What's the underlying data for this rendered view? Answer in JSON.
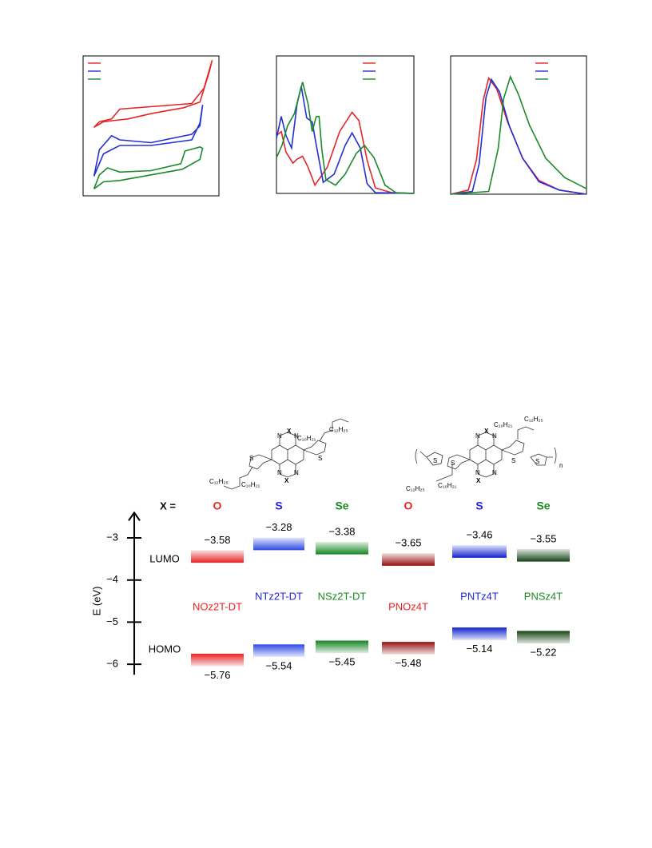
{
  "chart_data": [
    {
      "type": "line",
      "xlim": [
        0,
        10
      ],
      "ylim": [
        0,
        10
      ],
      "legend": "upper left",
      "series": [
        {
          "color": "#e3262a",
          "x": [
            0.8,
            1.2,
            2.1,
            2.7,
            8.0,
            8.9,
            9.5,
            9.3,
            8.6,
            7.4,
            5.1,
            3.3,
            2.4,
            1.5,
            0.8
          ],
          "values": [
            4.9,
            5.3,
            5.5,
            6.2,
            6.6,
            7.7,
            9.7,
            8.9,
            6.7,
            6.3,
            5.9,
            5.5,
            5.4,
            5.3,
            4.9
          ]
        },
        {
          "color": "#2330d8",
          "x": [
            0.8,
            1.2,
            2.1,
            2.7,
            5,
            8.0,
            8.6,
            8.8,
            8.6,
            8.0,
            5,
            2.7,
            1.5,
            0.8
          ],
          "values": [
            1.4,
            3.3,
            4.3,
            4.0,
            3.8,
            4.4,
            5.0,
            6.5,
            5.2,
            4.0,
            3.6,
            3.6,
            3.0,
            1.4
          ]
        },
        {
          "color": "#1a8a2a",
          "x": [
            0.8,
            1.2,
            1.8,
            2.7,
            5,
            7.2,
            7.5,
            8.6,
            8.8,
            8.6,
            7.3,
            5,
            2.7,
            1.5,
            0.8
          ],
          "values": [
            0.5,
            1.5,
            2.0,
            1.7,
            1.8,
            2.3,
            3.2,
            3.5,
            3.4,
            2.6,
            1.9,
            1.5,
            1.1,
            1.0,
            0.5
          ]
        }
      ]
    },
    {
      "type": "line",
      "xlim": [
        0,
        10
      ],
      "ylim": [
        0,
        10
      ],
      "legend": "upper right",
      "series": [
        {
          "color": "#e3262a",
          "x": [
            0,
            0.35,
            0.7,
            1.2,
            1.5,
            1.9,
            2.3,
            2.8,
            3.7,
            4.6,
            5.5,
            6.0,
            6.6,
            7.2,
            8.4,
            10
          ],
          "values": [
            4.2,
            4.5,
            3.0,
            2.2,
            2.5,
            2.7,
            1.9,
            0.6,
            1.9,
            4.5,
            5.9,
            5.3,
            2.4,
            0.4,
            0.05,
            0
          ]
        },
        {
          "color": "#2330d8",
          "x": [
            0,
            0.35,
            0.7,
            1.1,
            1.5,
            1.8,
            2.2,
            2.6,
            2.9,
            3.4,
            4.2,
            5.0,
            5.5,
            6.1,
            6.6,
            7.2,
            10
          ],
          "values": [
            4.0,
            5.6,
            4.2,
            3.3,
            6.5,
            7.8,
            5.5,
            5.2,
            3.5,
            0.8,
            1.4,
            3.5,
            4.4,
            3.3,
            0.7,
            0.05,
            0
          ]
        },
        {
          "color": "#1a8a2a",
          "x": [
            0,
            0.4,
            0.8,
            1.3,
            1.9,
            2.3,
            2.6,
            2.9,
            3.1,
            3.3,
            3.6,
            4.3,
            5.0,
            5.8,
            6.4,
            7.1,
            7.9,
            8.7,
            10
          ],
          "values": [
            2.6,
            3.5,
            4.9,
            5.8,
            8.1,
            6.5,
            4.5,
            5.6,
            5.6,
            3.2,
            1.0,
            0.6,
            1.4,
            2.9,
            3.5,
            2.6,
            0.6,
            0.05,
            0
          ]
        }
      ]
    },
    {
      "type": "line",
      "xlim": [
        0,
        10
      ],
      "ylim": [
        0,
        10
      ],
      "legend": "upper right",
      "series": [
        {
          "color": "#e3262a",
          "x": [
            0,
            1.3,
            1.9,
            2.4,
            2.8,
            3.4,
            4.2,
            5.3,
            6.5,
            8,
            10
          ],
          "values": [
            0,
            0.3,
            2.5,
            6.8,
            8.4,
            7.6,
            5.2,
            2.6,
            1.0,
            0.3,
            0
          ]
        },
        {
          "color": "#2330d8",
          "x": [
            0,
            1.6,
            2.1,
            2.6,
            3.0,
            3.6,
            4.3,
            5.3,
            6.5,
            8,
            10
          ],
          "values": [
            0,
            0.2,
            2.2,
            7.0,
            8.3,
            7.4,
            5.0,
            2.6,
            0.9,
            0.3,
            0
          ]
        },
        {
          "color": "#1a8a2a",
          "x": [
            0,
            2.8,
            3.5,
            3.9,
            4.4,
            5.0,
            5.8,
            7.0,
            8.4,
            10
          ],
          "values": [
            0,
            0.2,
            3.3,
            6.9,
            8.5,
            7.2,
            5.0,
            2.6,
            1.2,
            0.4
          ]
        }
      ]
    },
    {
      "type": "energy-levels",
      "ylabel": "E (eV)",
      "ylim": [
        -6.25,
        -2.4
      ],
      "yticks": [
        {
          "value": -3,
          "label": "−3"
        },
        {
          "value": -4,
          "label": "−4"
        },
        {
          "value": -5,
          "label": "−5"
        },
        {
          "value": -6,
          "label": "−6"
        }
      ],
      "header": "X =",
      "categories": [
        "O",
        "S",
        "Se",
        "O",
        "S",
        "Se"
      ],
      "names": [
        "NOz2T-DT",
        "NTz2T-DT",
        "NSz2T-DT",
        "PNOz4T",
        "PNTz4T",
        "PNSz4T"
      ],
      "colors": [
        "#ee2222",
        "#2222dd",
        "#1a8a22",
        "#ee2222",
        "#2222dd",
        "#1a8a22"
      ],
      "bar_colors": [
        "#e8282a",
        "#3550e8",
        "#1c8a2a",
        "#9a1818",
        "#1a2ad0",
        "#1c4a1c"
      ],
      "series": [
        {
          "name": "LUMO",
          "values": [
            -3.58,
            -3.28,
            -3.38,
            -3.65,
            -3.46,
            -3.55
          ],
          "value_labels": [
            "−3.58",
            "−3.28",
            "−3.38",
            "−3.65",
            "−3.46",
            "−3.55"
          ]
        },
        {
          "name": "HOMO",
          "values": [
            -5.76,
            -5.54,
            -5.45,
            -5.48,
            -5.14,
            -5.22
          ],
          "value_labels": [
            "−5.76",
            "−5.54",
            "−5.45",
            "−5.48",
            "−5.14",
            "−5.22"
          ]
        }
      ]
    }
  ],
  "structures": [
    {
      "labels": [
        "X",
        "N",
        "N",
        "N",
        "N",
        "X",
        "S",
        "S",
        "C₁₀H₂₁",
        "C₁₂H₂₅",
        "C₁₂H₂₅",
        "C₁₀H₂₁"
      ]
    },
    {
      "labels": [
        "X",
        "N",
        "N",
        "N",
        "N",
        "X",
        "S",
        "S",
        "S",
        "S",
        "C₁₀H₂₁",
        "C₁₂H₂₅",
        "C₁₂H₂₅",
        "C₁₀H₂₁",
        "n"
      ]
    }
  ]
}
